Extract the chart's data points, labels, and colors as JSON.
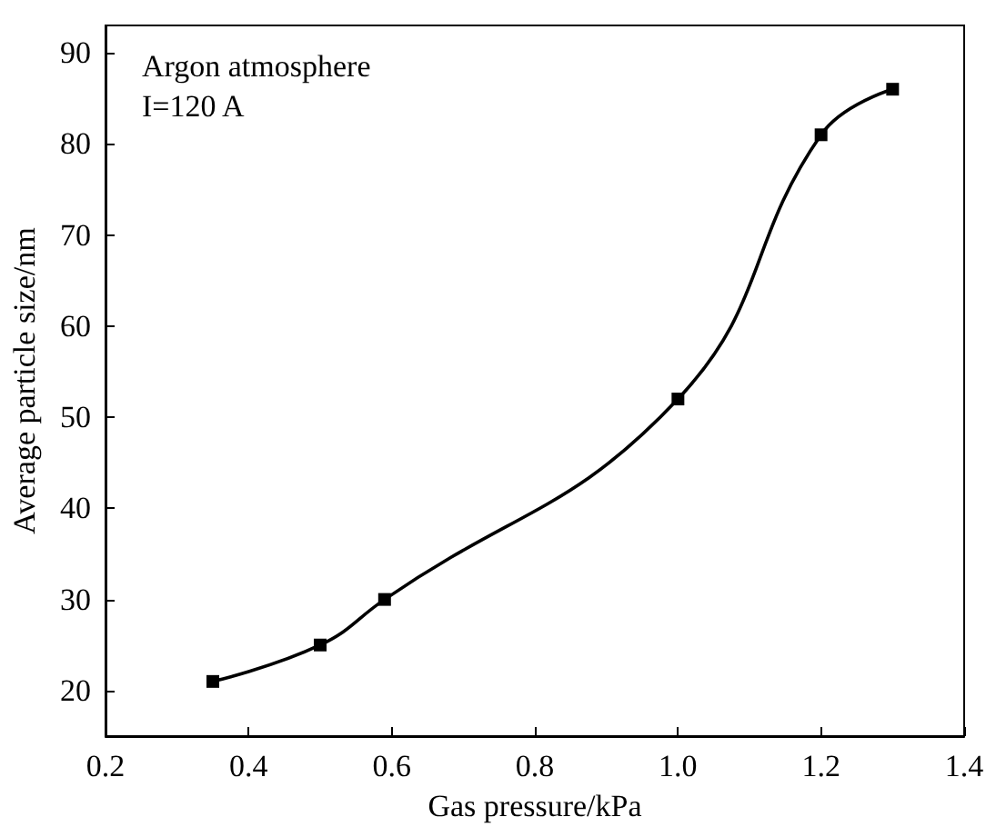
{
  "chart_data": {
    "type": "line",
    "xlabel": "Gas pressure/kPa",
    "ylabel": "Average particle size/nm",
    "annotations": [
      "Argon atmosphere",
      "I=120 A"
    ],
    "x": [
      0.35,
      0.5,
      0.59,
      1.0,
      1.2,
      1.3
    ],
    "series": [
      {
        "color": "#000000",
        "values": [
          21,
          25,
          30,
          52,
          81,
          86
        ]
      }
    ],
    "xlim": [
      0.2,
      1.4
    ],
    "xticks": [
      0.2,
      0.4,
      0.6,
      0.8,
      {
        "value": 1,
        "label": "1.0"
      },
      1.2,
      1.4
    ],
    "ylim": [
      15,
      93
    ],
    "yticks": [
      20,
      30,
      40,
      50,
      60,
      70,
      80,
      90
    ],
    "grid": false,
    "marker": "square",
    "line_style": "solid"
  }
}
